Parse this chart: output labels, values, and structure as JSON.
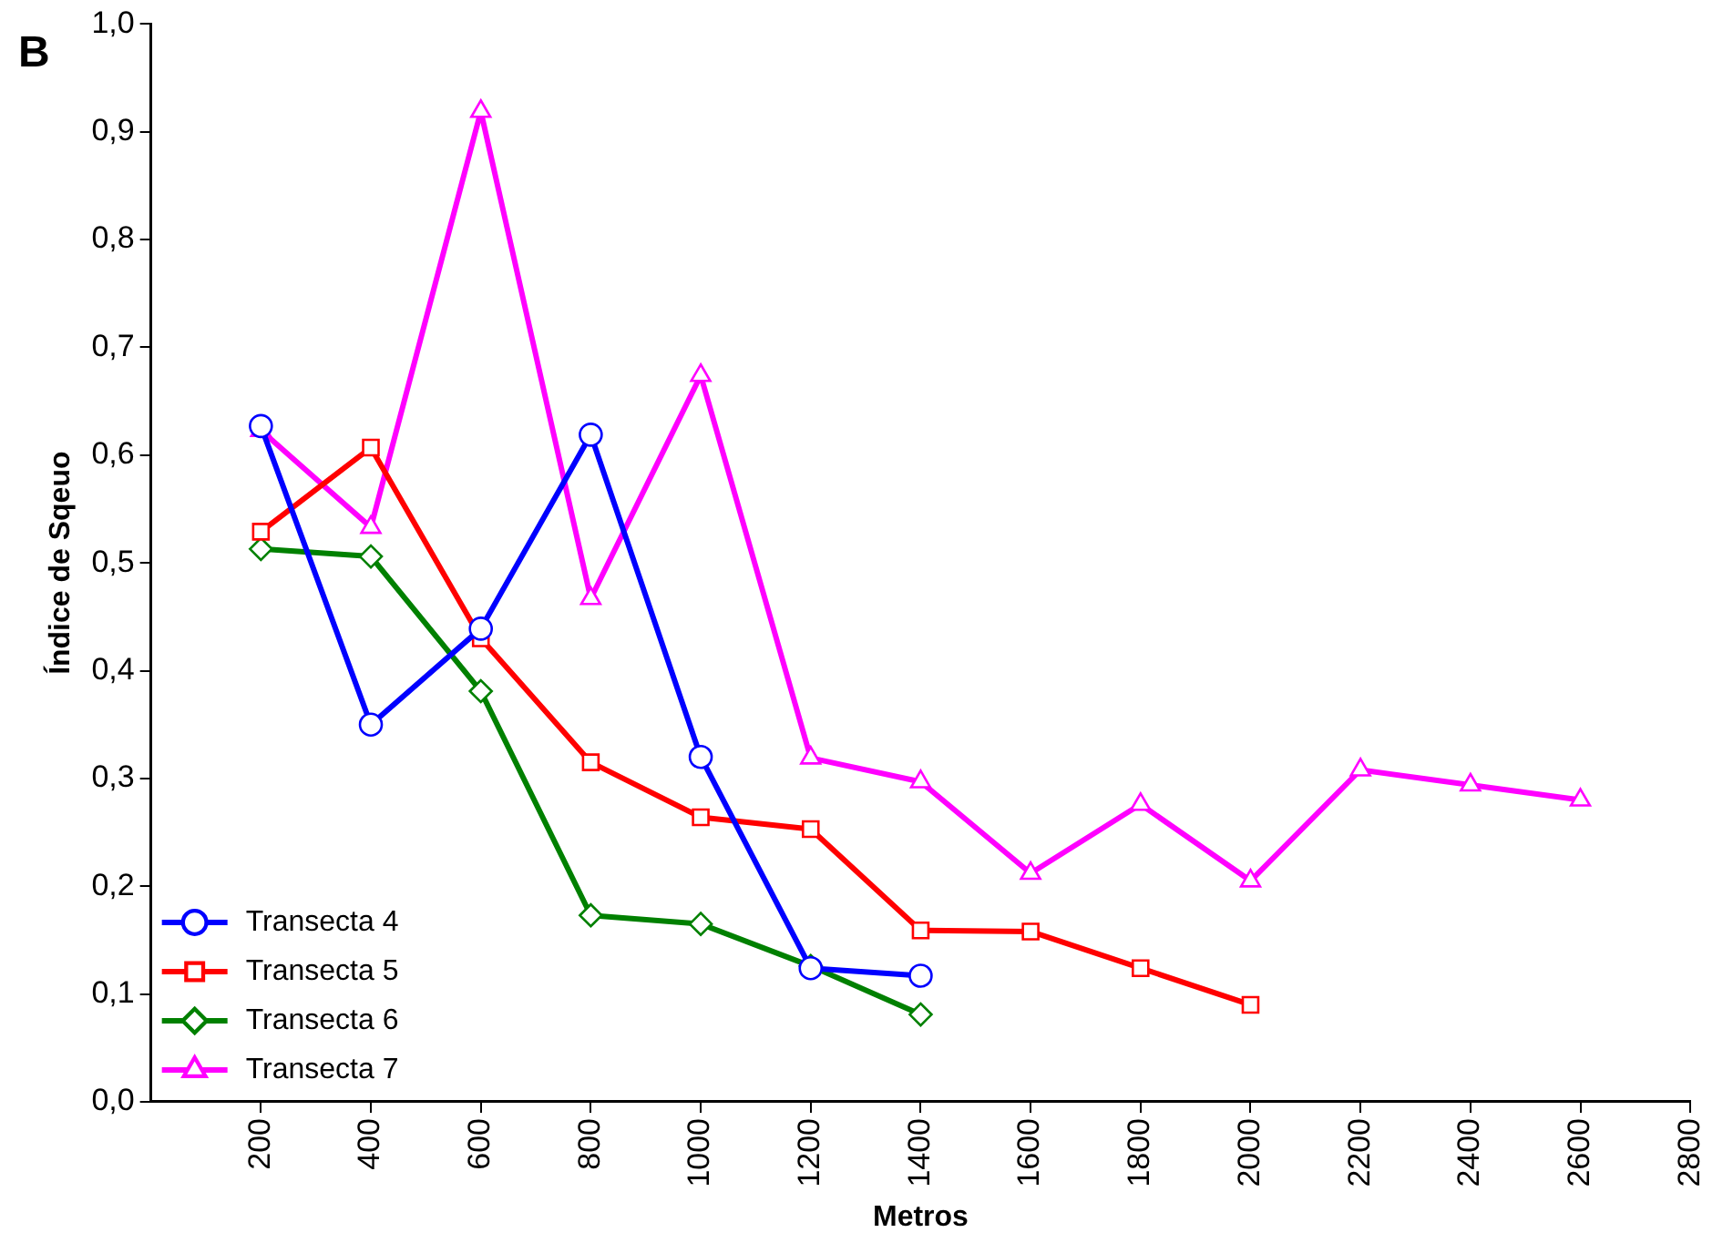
{
  "chart_data": {
    "type": "line",
    "xlabel": "Metros",
    "ylabel": "Índice de Sqeuo",
    "annotations": [
      "B"
    ],
    "xlim": [
      0,
      2800
    ],
    "xticks": [
      200,
      400,
      600,
      800,
      1000,
      1200,
      1400,
      1600,
      1800,
      2000,
      2200,
      2400,
      2600,
      2800
    ],
    "ylim": [
      0,
      1
    ],
    "yticks": [
      {
        "value": 0,
        "label": "0,0"
      },
      {
        "value": 0.1,
        "label": "0,1"
      },
      {
        "value": 0.2,
        "label": "0,2"
      },
      {
        "value": 0.3,
        "label": "0,3"
      },
      {
        "value": 0.4,
        "label": "0,4"
      },
      {
        "value": 0.5,
        "label": "0,5"
      },
      {
        "value": 0.6,
        "label": "0,6"
      },
      {
        "value": 0.7,
        "label": "0,7"
      },
      {
        "value": 0.8,
        "label": "0,8"
      },
      {
        "value": 0.9,
        "label": "0,9"
      },
      {
        "value": 1,
        "label": "1,0"
      }
    ],
    "grid": false,
    "legend": "bottom left",
    "series": [
      {
        "name": "Transecta 4",
        "color": "#0000ff",
        "marker": "circle",
        "x": [
          200,
          400,
          600,
          800,
          1000,
          1200,
          1400
        ],
        "values": [
          0.627,
          0.35,
          0.439,
          0.619,
          0.32,
          0.124,
          0.117
        ]
      },
      {
        "name": "Transecta 5",
        "color": "#ff0000",
        "marker": "square",
        "x": [
          200,
          400,
          600,
          800,
          1000,
          1200,
          1400,
          1600,
          1800,
          2000
        ],
        "values": [
          0.529,
          0.607,
          0.43,
          0.315,
          0.264,
          0.253,
          0.159,
          0.158,
          0.124,
          0.09
        ]
      },
      {
        "name": "Transecta 6",
        "color": "#008000",
        "marker": "diamond",
        "x": [
          200,
          400,
          600,
          800,
          1000,
          1200,
          1400
        ],
        "values": [
          0.513,
          0.506,
          0.381,
          0.173,
          0.165,
          0.126,
          0.081
        ]
      },
      {
        "name": "Transecta 7",
        "color": "#ff00ff",
        "marker": "triangle",
        "x": [
          200,
          400,
          600,
          800,
          1000,
          1200,
          1400,
          1600,
          1800,
          2000,
          2200,
          2400,
          2600
        ],
        "values": [
          0.623,
          0.533,
          0.919,
          0.467,
          0.674,
          0.319,
          0.297,
          0.212,
          0.276,
          0.205,
          0.308,
          0.294,
          0.28
        ]
      }
    ]
  }
}
